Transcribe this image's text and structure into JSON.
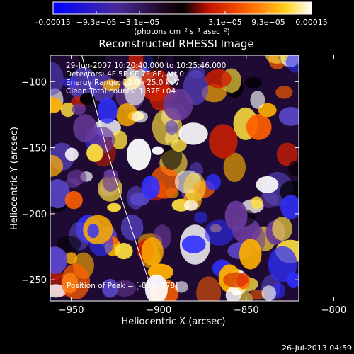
{
  "colorbar": {
    "tick_labels": [
      "-0.00015",
      "−9.3e−05",
      "−3.1e−05",
      "3.1e−05",
      "9.3e−05",
      "0.00015"
    ],
    "units_label": "(photons cm⁻² s⁻¹ asec⁻²)",
    "range": [
      -0.00015,
      0.00015
    ]
  },
  "annotations": {
    "time_range": "29-Jun-2007 10:20:40.000 to 10:25:46.000",
    "detectors": "Detectors: 4F 5F 6F 7F 8F, Att 0",
    "energy": "Energy Range: 12.0 - 25.0 keV",
    "clean": "Clean     Total counts: 1.37E+04",
    "peak": "Position of Peak = [-838,-178]"
  },
  "footer": {
    "timestamp": "26-Jul-2013 04:59"
  },
  "chart_data": {
    "type": "heatmap",
    "title": "Reconstructed RHESSI Image",
    "xlabel": "Heliocentric X (arcsec)",
    "ylabel": "Heliocentric Y (arcsec)",
    "xlim": [
      -962,
      -820
    ],
    "ylim": [
      -266,
      -80
    ],
    "x_ticks": [
      -950,
      -900,
      -850,
      -800
    ],
    "y_ticks": [
      -250,
      -200,
      -150,
      -100
    ],
    "x_tick_labels": [
      "−950",
      "−900",
      "−850",
      "−800"
    ],
    "y_tick_labels": [
      "−250",
      "−200",
      "−150",
      "−100"
    ],
    "peak": {
      "x": -838,
      "y": -178
    },
    "colors": {
      "low": "#1010ff",
      "mid": "#000000",
      "high": "#ffffff"
    },
    "limb_curve": [
      {
        "x": -944,
        "y": -80
      },
      {
        "x": -938,
        "y": -110
      },
      {
        "x": -930,
        "y": -150
      },
      {
        "x": -921,
        "y": -190
      },
      {
        "x": -911,
        "y": -230
      },
      {
        "x": -902,
        "y": -266
      }
    ]
  }
}
